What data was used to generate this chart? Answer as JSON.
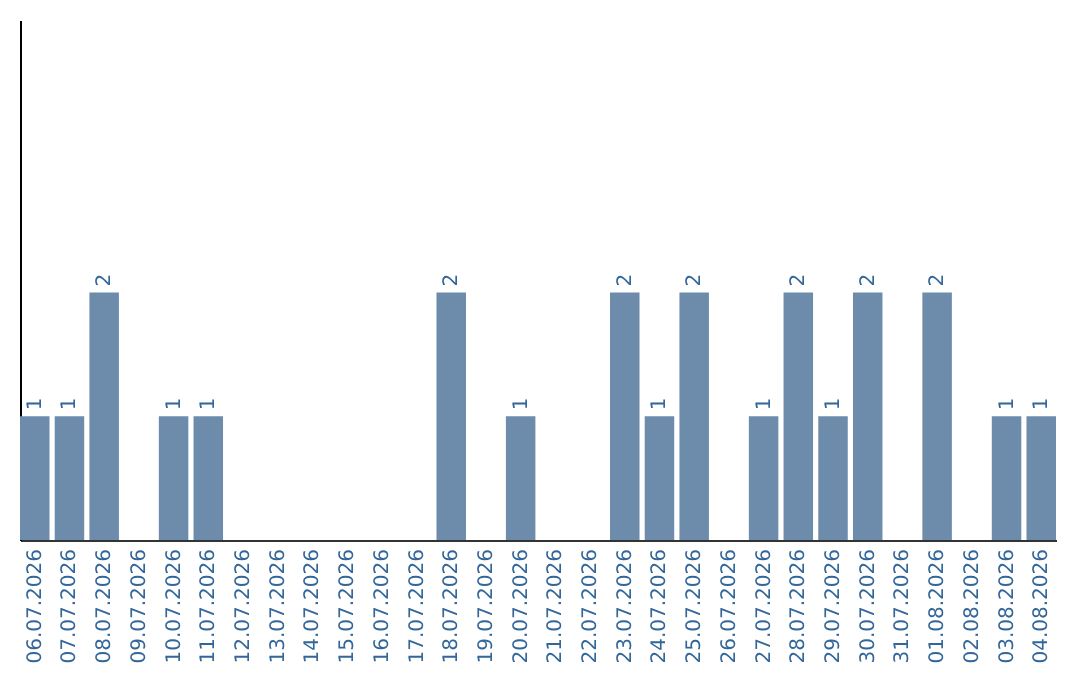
{
  "chart_data": {
    "type": "bar",
    "categories": [
      "06.07.2026",
      "07.07.2026",
      "08.07.2026",
      "09.07.2026",
      "10.07.2026",
      "11.07.2026",
      "12.07.2026",
      "13.07.2026",
      "14.07.2026",
      "15.07.2026",
      "16.07.2026",
      "17.07.2026",
      "18.07.2026",
      "19.07.2026",
      "20.07.2026",
      "21.07.2026",
      "22.07.2026",
      "23.07.2026",
      "24.07.2026",
      "25.07.2026",
      "26.07.2026",
      "27.07.2026",
      "28.07.2026",
      "29.07.2026",
      "30.07.2026",
      "31.07.2026",
      "01.08.2026",
      "02.08.2026",
      "03.08.2026",
      "04.08.2026"
    ],
    "values": [
      1,
      1,
      2,
      0,
      1,
      1,
      0,
      0,
      0,
      0,
      0,
      0,
      2,
      0,
      1,
      0,
      0,
      2,
      1,
      2,
      0,
      1,
      2,
      1,
      2,
      0,
      2,
      0,
      1,
      1
    ],
    "value_labels": [
      "1",
      "1",
      "2",
      null,
      "1",
      "1",
      null,
      null,
      null,
      null,
      null,
      null,
      "2",
      null,
      "1",
      null,
      null,
      "2",
      "1",
      "2",
      null,
      "1",
      "2",
      "1",
      "2",
      null,
      "2",
      null,
      "1",
      "1"
    ],
    "color": "#6d8cab",
    "ylim": [
      0,
      4.2
    ],
    "tick_labels": "x",
    "grid": false
  }
}
